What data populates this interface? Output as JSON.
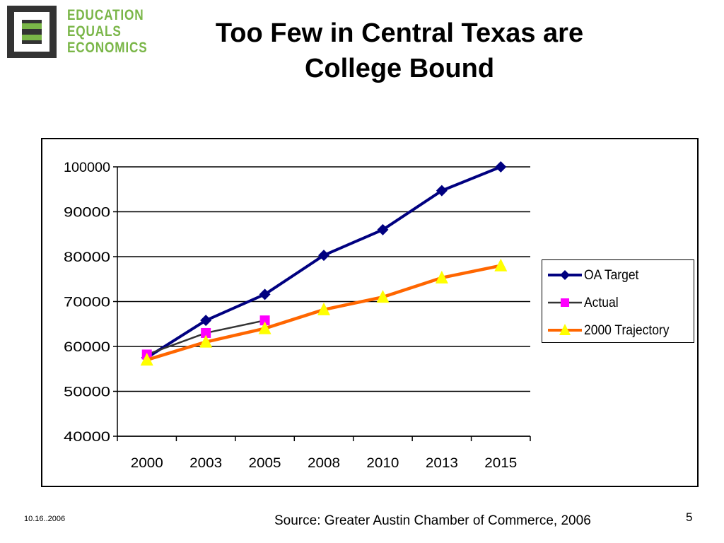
{
  "logo": {
    "line1": "EDUCATION",
    "line2": "EQUALS",
    "line3": "ECONOMICS",
    "mark_color": "#333333",
    "text_color": "#7ab648"
  },
  "slide": {
    "title_line1": "Too Few in Central Texas are",
    "title_line2": "College Bound",
    "date": "10.16..2006",
    "source": "Source: Greater Austin Chamber of Commerce, 2006",
    "page_number": "5"
  },
  "chart_data": {
    "type": "line",
    "categories": [
      "2000",
      "2003",
      "2005",
      "2008",
      "2010",
      "2013",
      "2015"
    ],
    "ylim": [
      40000,
      100000
    ],
    "yticks": [
      "100000",
      "90000",
      "80000",
      "70000",
      "60000",
      "50000",
      "40000"
    ],
    "grid": true,
    "legend_position": "right",
    "series": [
      {
        "name": "OA Target",
        "color": "#000080",
        "marker": "diamond",
        "values": [
          57500,
          65800,
          71600,
          80300,
          86000,
          94700,
          100000
        ]
      },
      {
        "name": "Actual",
        "color": "#333333",
        "marker": "square",
        "marker_color": "#ff00ff",
        "values": [
          58200,
          63000,
          65800,
          null,
          null,
          null,
          null
        ]
      },
      {
        "name": "2000 Trajectory",
        "color": "#ff6600",
        "marker": "triangle",
        "marker_color": "#ffff00",
        "values": [
          57000,
          61000,
          64000,
          68200,
          71000,
          75300,
          78000
        ]
      }
    ]
  }
}
